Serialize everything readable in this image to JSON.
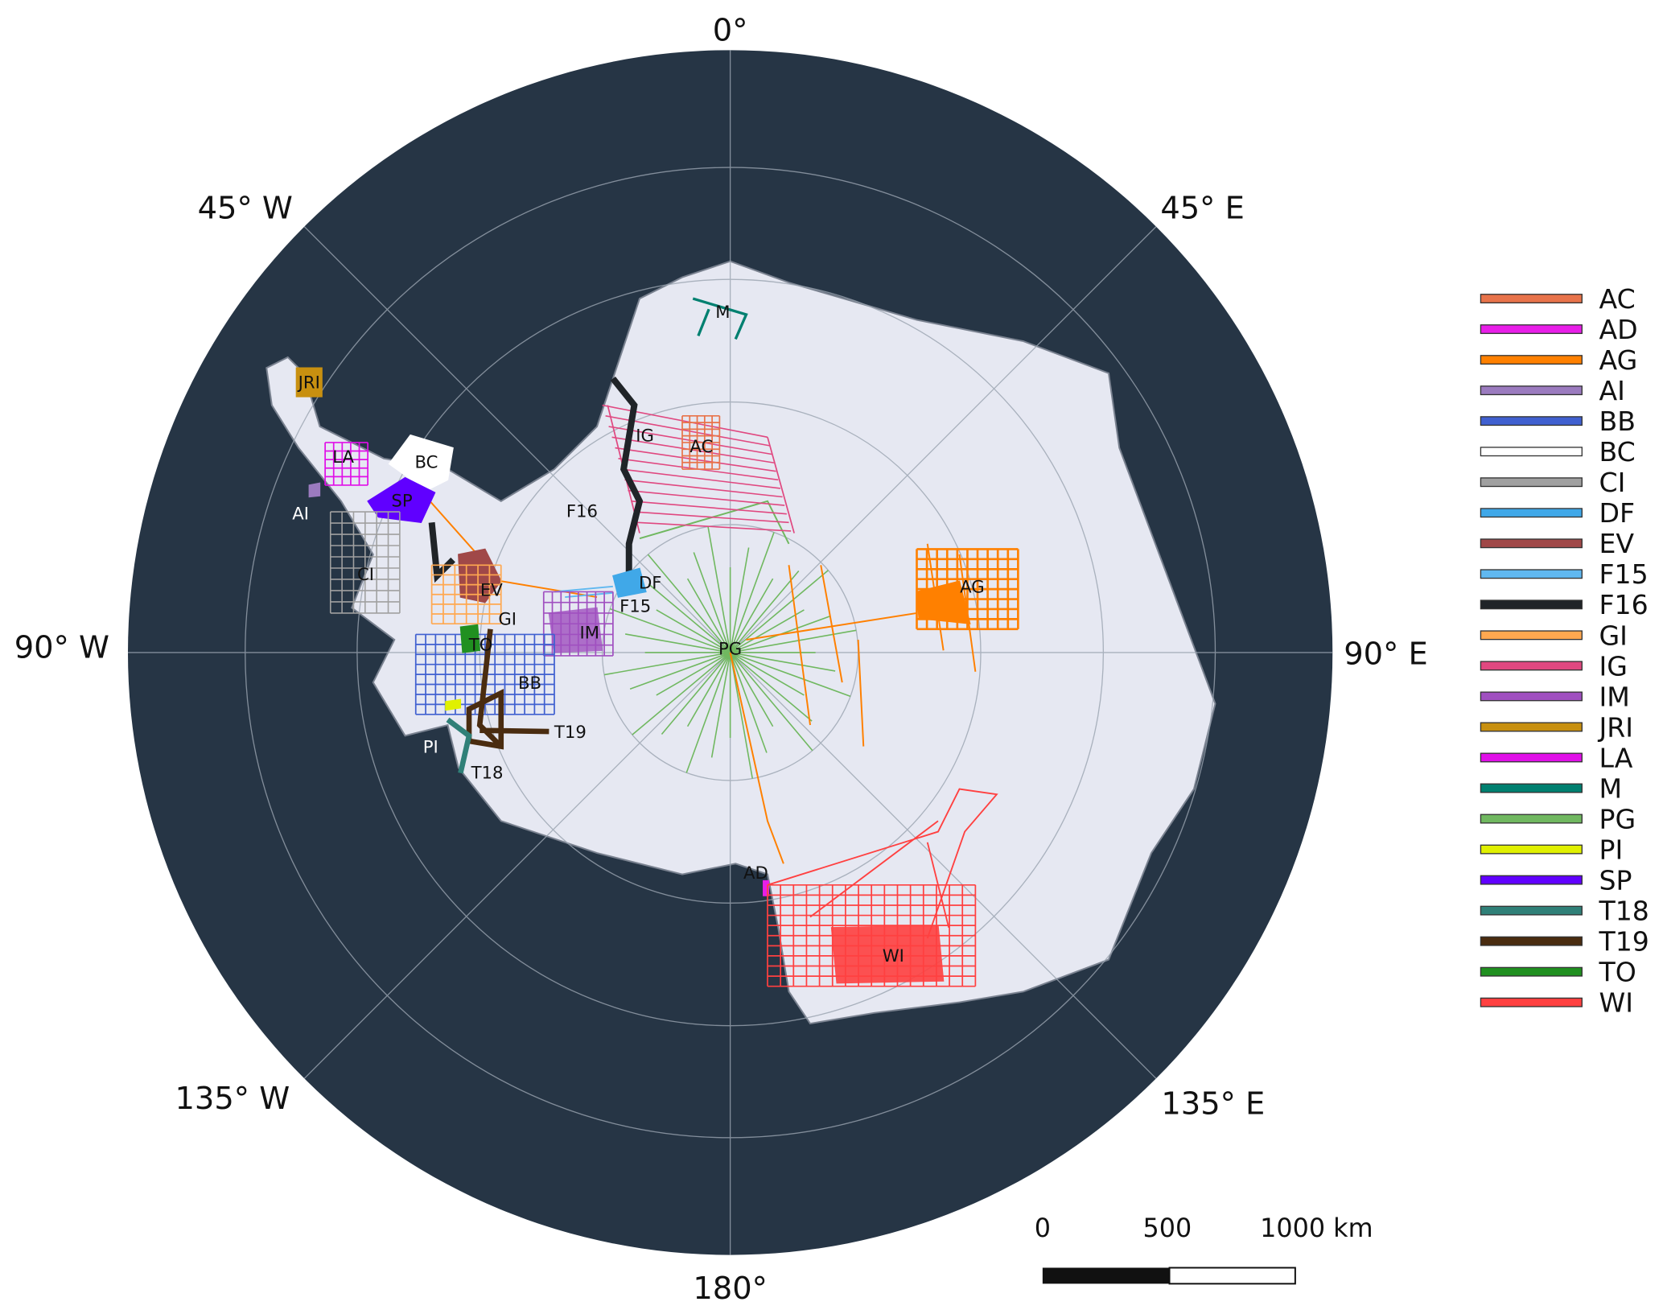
{
  "graticule_labels": {
    "lon_0": "0°",
    "lon_45e": "45° E",
    "lon_90e": "90° E",
    "lon_135e": "135° E",
    "lon_180": "180°",
    "lon_135w": "135° W",
    "lon_90w": "90° W",
    "lon_45w": "45° W"
  },
  "colors": {
    "ocean": "#263545",
    "ice": "#e6e8f2",
    "graticule": "#9aa4b0"
  },
  "surveys": [
    {
      "code": "AC",
      "color": "#e8734a"
    },
    {
      "code": "AD",
      "color": "#e81ee8"
    },
    {
      "code": "AG",
      "color": "#ff8000"
    },
    {
      "code": "AI",
      "color": "#9b7bbf"
    },
    {
      "code": "BB",
      "color": "#4060d0"
    },
    {
      "code": "BC",
      "color": "#ffffff"
    },
    {
      "code": "CI",
      "color": "#a0a0a0"
    },
    {
      "code": "DF",
      "color": "#40a8e8"
    },
    {
      "code": "EV",
      "color": "#a04848"
    },
    {
      "code": "F15",
      "color": "#60b8f0"
    },
    {
      "code": "F16",
      "color": "#202428"
    },
    {
      "code": "GI",
      "color": "#ffa850"
    },
    {
      "code": "IG",
      "color": "#e04880"
    },
    {
      "code": "IM",
      "color": "#a050c0"
    },
    {
      "code": "JRI",
      "color": "#c89010"
    },
    {
      "code": "LA",
      "color": "#e010e8"
    },
    {
      "code": "M",
      "color": "#008070"
    },
    {
      "code": "PG",
      "color": "#70b860"
    },
    {
      "code": "PI",
      "color": "#e0f000"
    },
    {
      "code": "SP",
      "color": "#6000ff"
    },
    {
      "code": "T18",
      "color": "#308078"
    },
    {
      "code": "T19",
      "color": "#4a2c10"
    },
    {
      "code": "TO",
      "color": "#209020"
    },
    {
      "code": "WI",
      "color": "#ff4040"
    }
  ],
  "scale_bar": {
    "tick_0": "0",
    "tick_500": "500",
    "tick_1000": "1000 km"
  }
}
